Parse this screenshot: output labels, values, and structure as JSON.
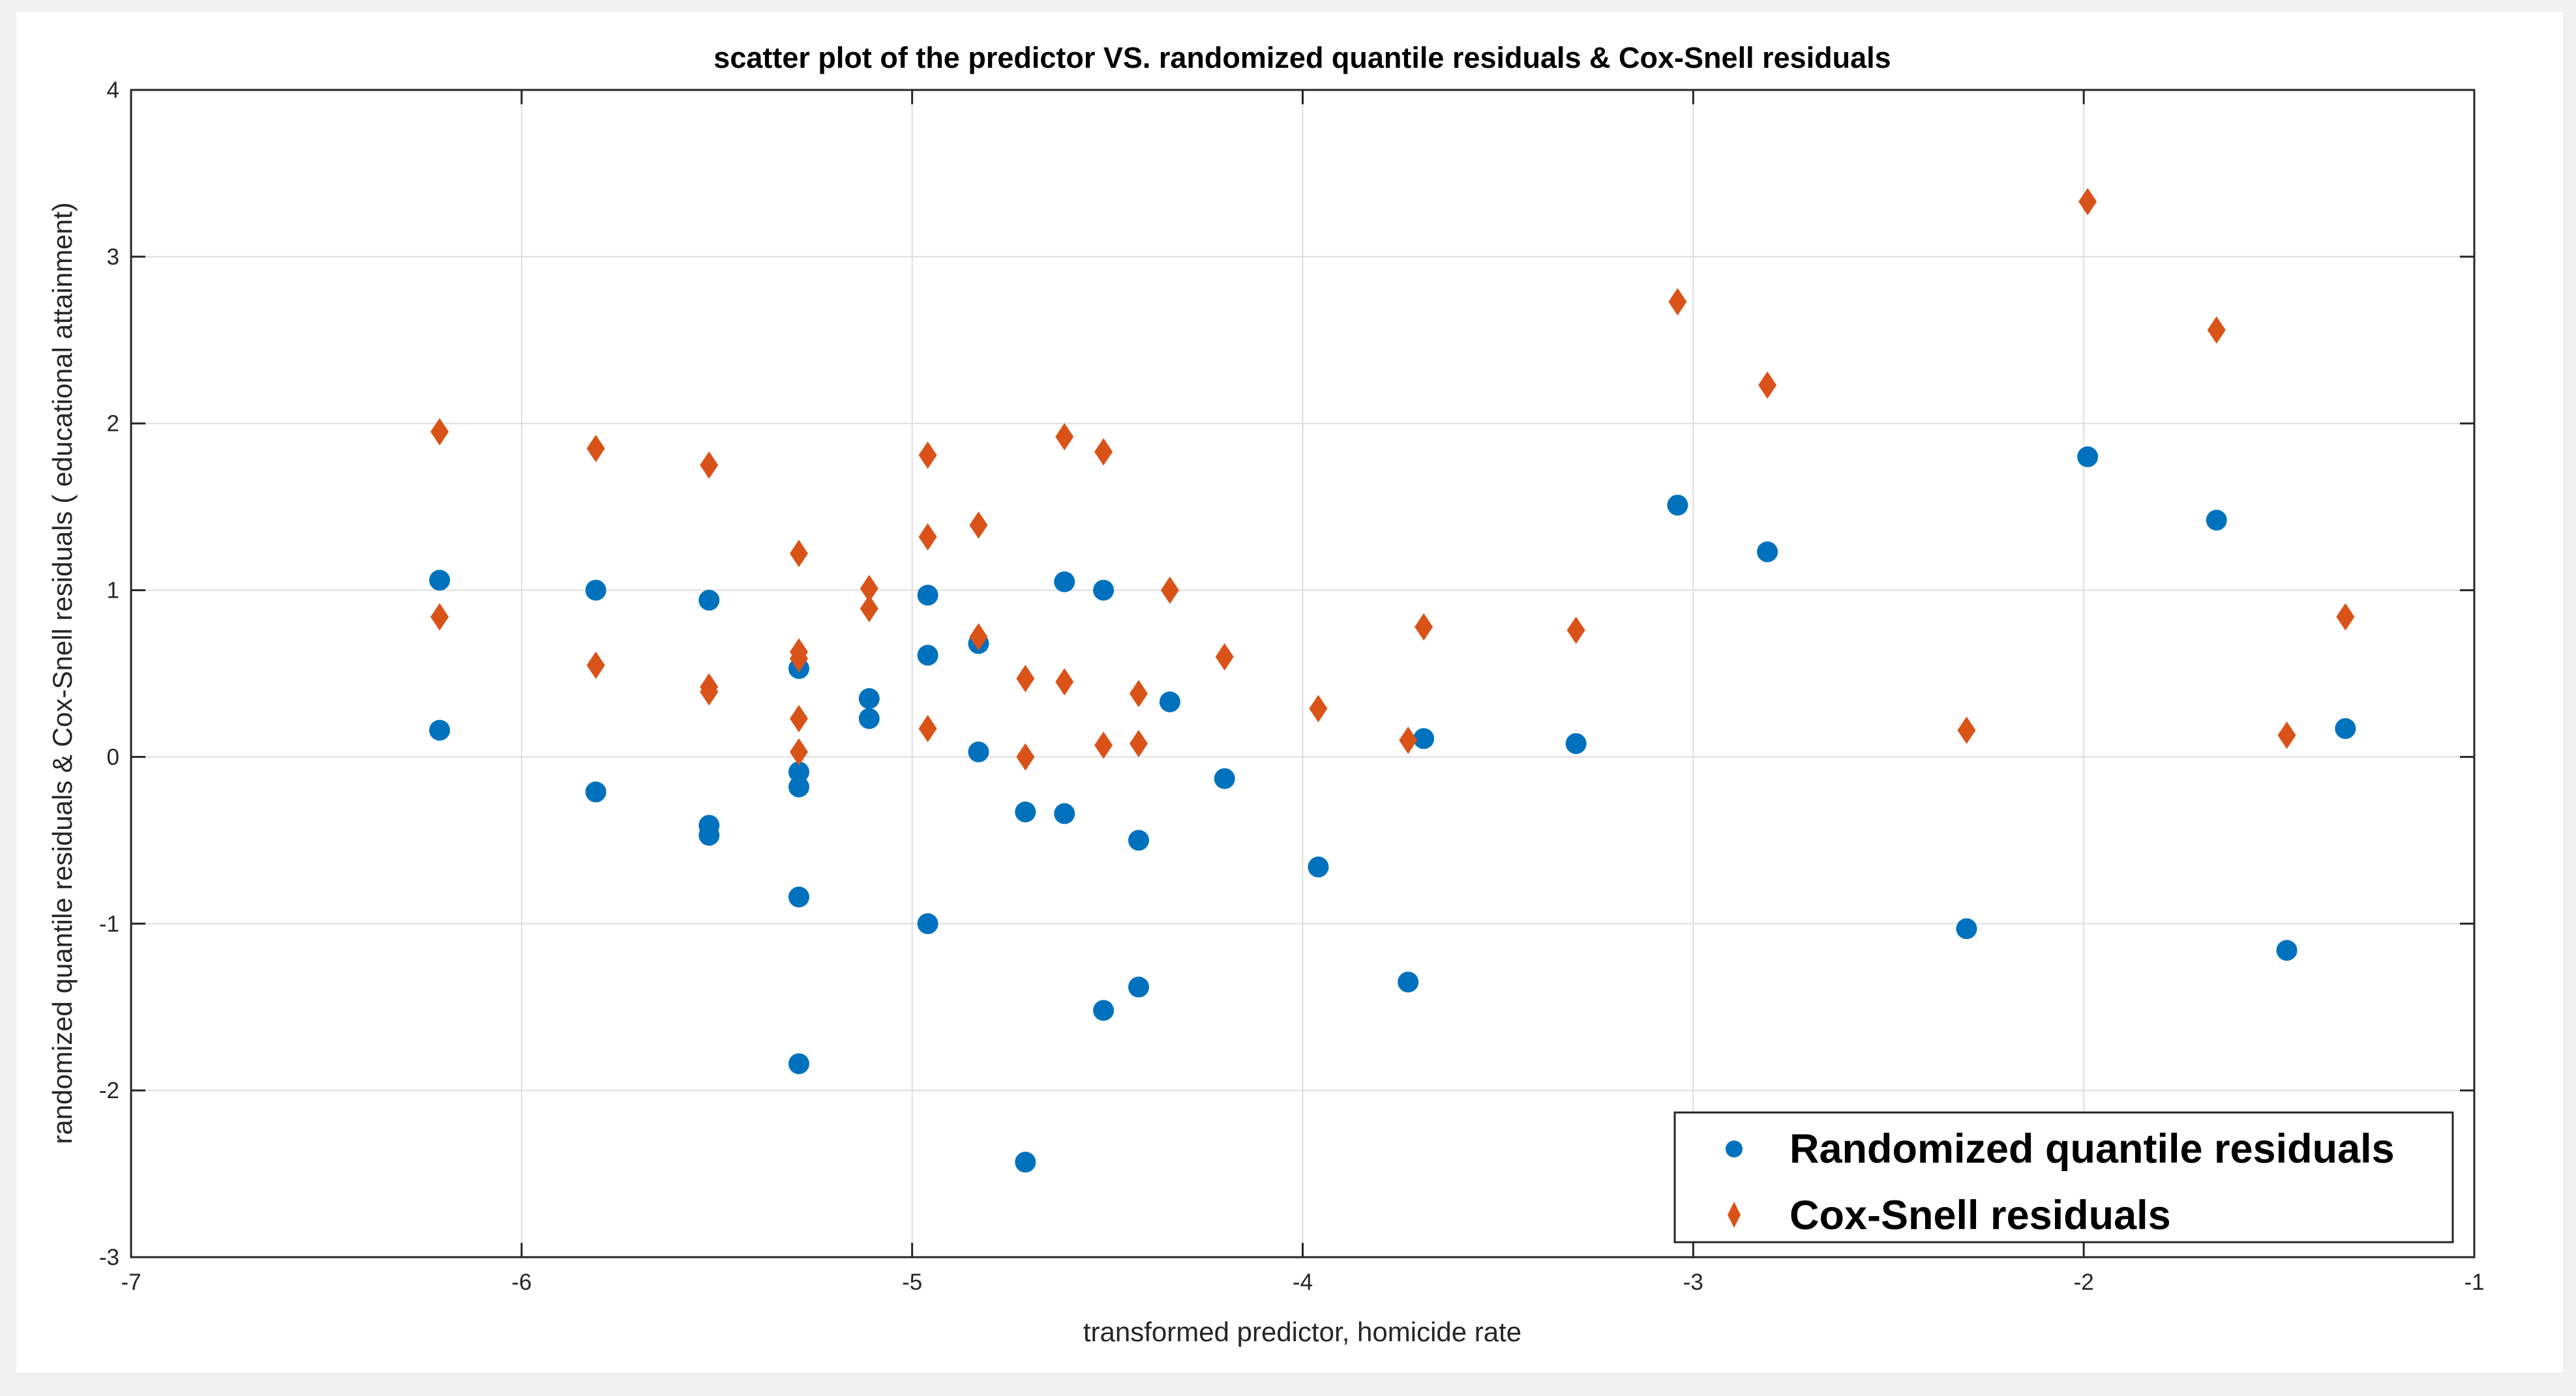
{
  "chart_data": {
    "type": "scatter",
    "title": "scatter plot of the predictor VS. randomized quantile residuals & Cox-Snell residuals",
    "xlabel": "transformed predictor, homicide rate",
    "ylabel": "randomized quantile residuals & Cox-Snell residuals ( educational attainment)",
    "xlim": [
      -7,
      -1
    ],
    "ylim": [
      -3,
      4
    ],
    "xticks": [
      -7,
      -6,
      -5,
      -4,
      -3,
      -2,
      -1
    ],
    "yticks": [
      -3,
      -2,
      -1,
      0,
      1,
      2,
      3,
      4
    ],
    "grid": true,
    "legend_position": "bottom-right",
    "series": [
      {
        "name": "Randomized quantile residuals",
        "marker": "circle",
        "color": "#0072BD",
        "points": [
          [
            -6.21,
            1.06
          ],
          [
            -6.21,
            0.16
          ],
          [
            -5.81,
            1.0
          ],
          [
            -5.81,
            -0.21
          ],
          [
            -5.52,
            0.94
          ],
          [
            -5.52,
            -0.41
          ],
          [
            -5.52,
            -0.47
          ],
          [
            -5.29,
            0.53
          ],
          [
            -5.29,
            -0.09
          ],
          [
            -5.29,
            -0.18
          ],
          [
            -5.29,
            -0.84
          ],
          [
            -5.29,
            -1.84
          ],
          [
            -5.11,
            0.35
          ],
          [
            -5.11,
            0.23
          ],
          [
            -4.96,
            0.97
          ],
          [
            -4.96,
            0.61
          ],
          [
            -4.96,
            -1.0
          ],
          [
            -4.83,
            0.68
          ],
          [
            -4.83,
            0.03
          ],
          [
            -4.71,
            -0.33
          ],
          [
            -4.71,
            -2.43
          ],
          [
            -4.61,
            1.05
          ],
          [
            -4.61,
            -0.34
          ],
          [
            -4.51,
            1.0
          ],
          [
            -4.51,
            -1.52
          ],
          [
            -4.42,
            -0.5
          ],
          [
            -4.42,
            -1.38
          ],
          [
            -4.34,
            0.33
          ],
          [
            -4.2,
            -0.13
          ],
          [
            -3.96,
            -0.66
          ],
          [
            -3.73,
            -1.35
          ],
          [
            -3.69,
            0.11
          ],
          [
            -3.3,
            0.08
          ],
          [
            -3.04,
            1.51
          ],
          [
            -2.81,
            1.23
          ],
          [
            -2.3,
            -1.03
          ],
          [
            -1.99,
            1.8
          ],
          [
            -1.66,
            1.42
          ],
          [
            -1.48,
            -1.16
          ],
          [
            -1.33,
            0.17
          ]
        ]
      },
      {
        "name": "Cox-Snell residuals",
        "marker": "diamond",
        "color": "#D95319",
        "points": [
          [
            -6.21,
            1.95
          ],
          [
            -6.21,
            0.84
          ],
          [
            -5.81,
            1.85
          ],
          [
            -5.81,
            0.55
          ],
          [
            -5.52,
            1.75
          ],
          [
            -5.52,
            0.42
          ],
          [
            -5.52,
            0.39
          ],
          [
            -5.29,
            1.22
          ],
          [
            -5.29,
            0.63
          ],
          [
            -5.29,
            0.59
          ],
          [
            -5.29,
            0.23
          ],
          [
            -5.29,
            0.03
          ],
          [
            -5.11,
            1.01
          ],
          [
            -5.11,
            0.89
          ],
          [
            -4.96,
            1.81
          ],
          [
            -4.96,
            1.32
          ],
          [
            -4.96,
            0.17
          ],
          [
            -4.83,
            1.39
          ],
          [
            -4.83,
            0.72
          ],
          [
            -4.71,
            0.47
          ],
          [
            -4.71,
            0.0
          ],
          [
            -4.61,
            1.92
          ],
          [
            -4.61,
            0.45
          ],
          [
            -4.51,
            1.83
          ],
          [
            -4.51,
            0.07
          ],
          [
            -4.42,
            0.38
          ],
          [
            -4.42,
            0.08
          ],
          [
            -4.34,
            1.0
          ],
          [
            -4.2,
            0.6
          ],
          [
            -3.96,
            0.29
          ],
          [
            -3.73,
            0.1
          ],
          [
            -3.69,
            0.78
          ],
          [
            -3.3,
            0.76
          ],
          [
            -3.04,
            2.73
          ],
          [
            -2.81,
            2.23
          ],
          [
            -2.3,
            0.16
          ],
          [
            -1.99,
            3.33
          ],
          [
            -1.66,
            2.56
          ],
          [
            -1.48,
            0.13
          ],
          [
            -1.33,
            0.84
          ]
        ]
      }
    ]
  }
}
